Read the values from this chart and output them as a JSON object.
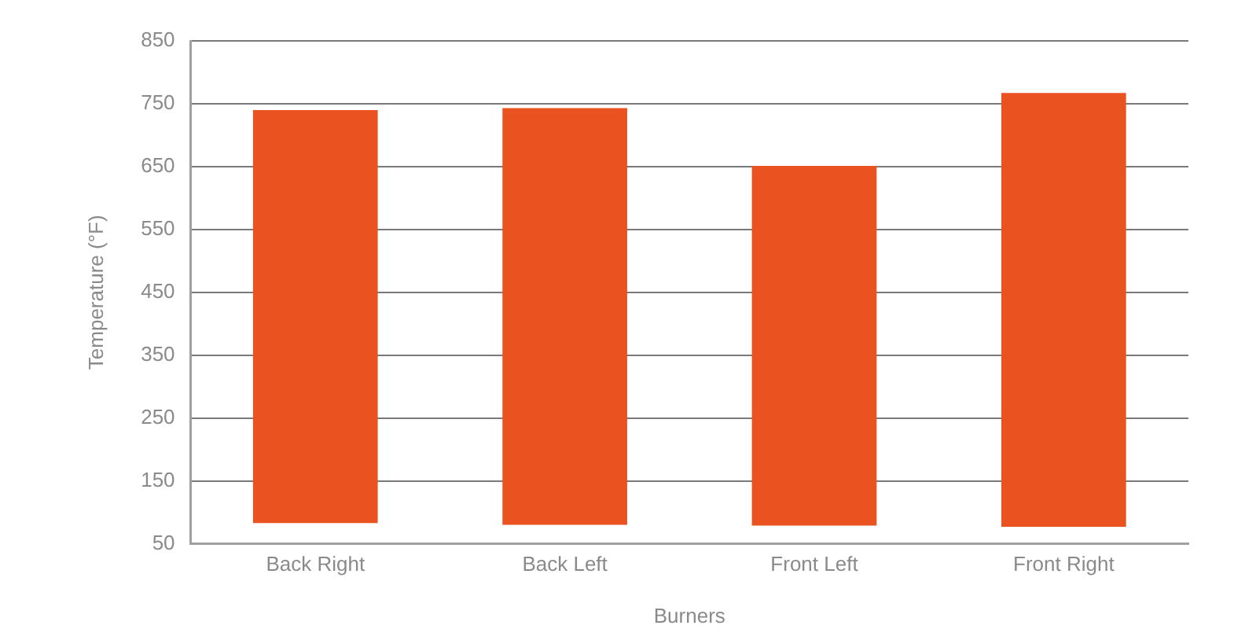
{
  "chart_data": {
    "type": "bar",
    "xlabel": "Burners",
    "ylabel": "Temperature (°F)",
    "categories": [
      "Back Right",
      "Back Left",
      "Front Left",
      "Front Right"
    ],
    "base": [
      83,
      80,
      79,
      77
    ],
    "values": [
      657,
      663,
      572,
      690
    ],
    "color": "#ea5220",
    "ylim": [
      50,
      850
    ],
    "yticks": [
      50,
      150,
      250,
      350,
      450,
      550,
      650,
      750,
      850
    ],
    "grid": "y",
    "legend": false
  }
}
